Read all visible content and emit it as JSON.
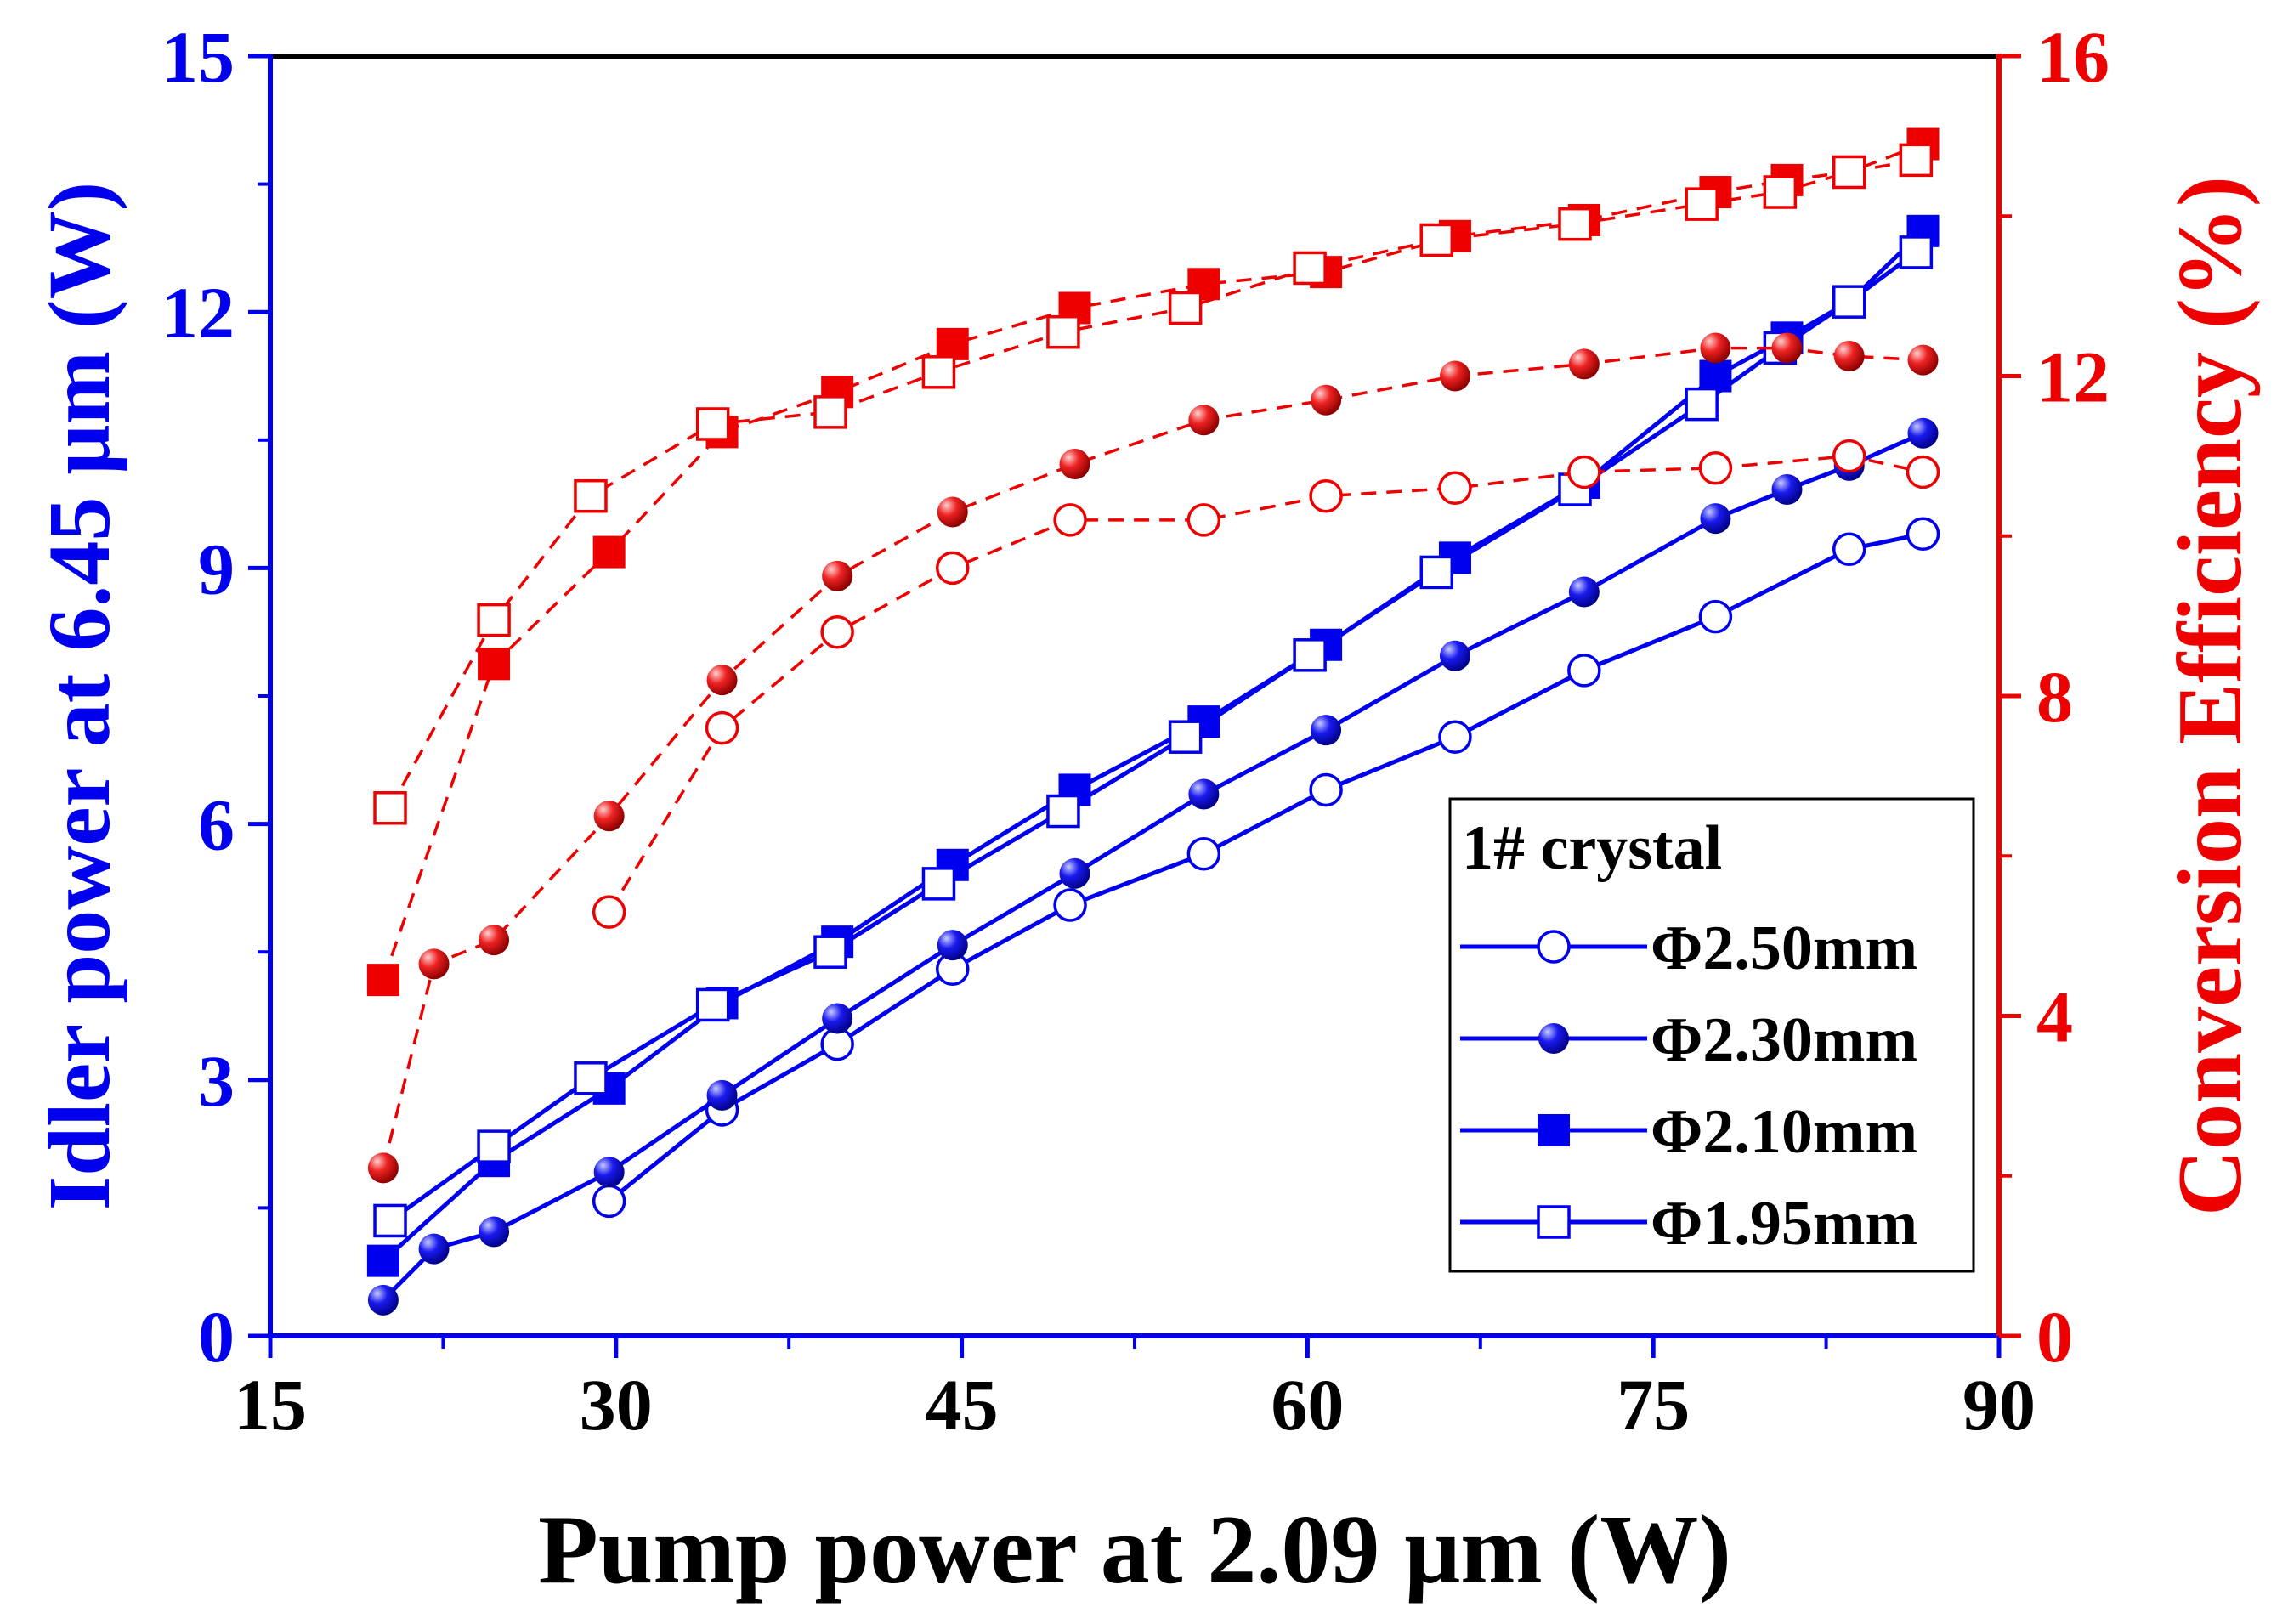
{
  "chart_data": {
    "type": "line",
    "x_axis": {
      "label": "Pump power at 2.09 μm (W)",
      "range": [
        15,
        90
      ],
      "ticks": [
        15,
        30,
        45,
        60,
        75,
        90
      ],
      "color": "#000000"
    },
    "y_axis_left": {
      "label": "Idler power at 6.45 μm (W)",
      "range": [
        0,
        15
      ],
      "ticks": [
        0,
        3,
        6,
        9,
        12,
        15
      ],
      "color": "#0000ee"
    },
    "y_axis_right": {
      "label": "Conversion Efficiency (%)",
      "range": [
        0,
        16
      ],
      "ticks": [
        0,
        4,
        8,
        12,
        16
      ],
      "color": "#ee0000"
    },
    "grid": false,
    "legend": {
      "position": "bottom-right",
      "title": "1# crystal",
      "entries": [
        {
          "label": "Φ2.50mm",
          "marker": "open-circle"
        },
        {
          "label": "Φ2.30mm",
          "marker": "filled-sphere"
        },
        {
          "label": "Φ2.10mm",
          "marker": "filled-square"
        },
        {
          "label": "Φ1.95mm",
          "marker": "open-square"
        }
      ]
    },
    "series": [
      {
        "name": "Φ2.50mm",
        "axis": "left",
        "marker": "open-circle",
        "color": "#0000ee",
        "line": "solid",
        "x": [
          29.7,
          34.6,
          39.6,
          44.6,
          49.7,
          55.5,
          60.8,
          66.4,
          72.0,
          77.7,
          83.5,
          86.7
        ],
        "y": [
          1.58,
          2.65,
          3.42,
          4.3,
          5.05,
          5.65,
          6.4,
          7.02,
          7.8,
          8.43,
          9.22,
          9.4
        ]
      },
      {
        "name": "Φ2.30mm",
        "axis": "left",
        "marker": "filled-sphere",
        "color": "#0000ee",
        "line": "solid",
        "x": [
          19.9,
          22.1,
          24.7,
          29.7,
          34.6,
          39.6,
          44.6,
          49.9,
          55.5,
          60.8,
          66.4,
          72.0,
          77.7,
          80.8,
          83.5,
          86.7
        ],
        "y": [
          0.42,
          1.02,
          1.22,
          1.92,
          2.82,
          3.72,
          4.58,
          5.42,
          6.35,
          7.1,
          7.97,
          8.72,
          9.58,
          9.92,
          10.2,
          10.58
        ]
      },
      {
        "name": "Φ2.10mm",
        "axis": "left",
        "marker": "filled-square",
        "color": "#0000ee",
        "line": "solid",
        "x": [
          19.9,
          24.7,
          29.7,
          34.6,
          39.6,
          44.6,
          49.9,
          55.5,
          60.8,
          66.4,
          72.0,
          77.7,
          80.8,
          83.5,
          86.7
        ],
        "y": [
          0.88,
          2.05,
          2.9,
          3.9,
          4.62,
          5.52,
          6.4,
          7.2,
          8.1,
          9.12,
          10.0,
          11.25,
          11.7,
          12.12,
          12.95
        ]
      },
      {
        "name": "Φ1.95mm",
        "axis": "left",
        "marker": "open-square",
        "color": "#0000ee",
        "line": "solid",
        "x": [
          20.2,
          24.7,
          28.9,
          34.2,
          39.3,
          44.0,
          49.4,
          54.7,
          60.1,
          65.6,
          71.6,
          77.1,
          80.5,
          83.5,
          86.4
        ],
        "y": [
          1.35,
          2.22,
          3.02,
          3.88,
          4.5,
          5.3,
          6.15,
          7.02,
          7.98,
          8.95,
          9.92,
          10.92,
          11.58,
          12.12,
          12.7
        ]
      },
      {
        "name": "Φ2.50mm efficiency",
        "axis": "right",
        "marker": "open-circle",
        "color": "#ee0000",
        "line": "dashed",
        "x": [
          29.7,
          34.6,
          39.6,
          44.6,
          49.7,
          55.5,
          60.8,
          66.4,
          72.0,
          77.7,
          83.5,
          86.7
        ],
        "y": [
          5.3,
          7.6,
          8.8,
          9.6,
          10.2,
          10.2,
          10.5,
          10.6,
          10.8,
          10.85,
          11.0,
          10.8
        ]
      },
      {
        "name": "Φ2.30mm efficiency",
        "axis": "right",
        "marker": "filled-sphere",
        "color": "#ee0000",
        "line": "dashed",
        "x": [
          19.9,
          22.1,
          24.7,
          29.7,
          34.6,
          39.6,
          44.6,
          49.9,
          55.5,
          60.8,
          66.4,
          72.0,
          77.7,
          80.8,
          83.5,
          86.7
        ],
        "y": [
          2.1,
          4.65,
          4.95,
          6.5,
          8.2,
          9.5,
          10.3,
          10.9,
          11.45,
          11.7,
          12.0,
          12.15,
          12.35,
          12.35,
          12.25,
          12.2
        ]
      },
      {
        "name": "Φ2.10mm efficiency",
        "axis": "right",
        "marker": "filled-square",
        "color": "#ee0000",
        "line": "dashed",
        "x": [
          19.9,
          24.7,
          29.7,
          34.6,
          39.6,
          44.6,
          49.9,
          55.5,
          60.8,
          66.4,
          72.0,
          77.7,
          80.8,
          83.5,
          86.7
        ],
        "y": [
          4.45,
          8.4,
          9.8,
          11.3,
          11.8,
          12.4,
          12.85,
          13.15,
          13.3,
          13.75,
          13.95,
          14.3,
          14.45,
          14.55,
          14.9
        ]
      },
      {
        "name": "Φ1.95mm efficiency",
        "axis": "right",
        "marker": "open-square",
        "color": "#ee0000",
        "line": "dashed",
        "x": [
          20.2,
          24.7,
          28.9,
          34.2,
          39.3,
          44.0,
          49.4,
          54.7,
          60.1,
          65.6,
          71.6,
          77.1,
          80.5,
          83.5,
          86.4
        ],
        "y": [
          6.6,
          8.95,
          10.5,
          11.4,
          11.55,
          12.05,
          12.55,
          12.85,
          13.35,
          13.7,
          13.9,
          14.15,
          14.3,
          14.55,
          14.7
        ]
      }
    ]
  }
}
